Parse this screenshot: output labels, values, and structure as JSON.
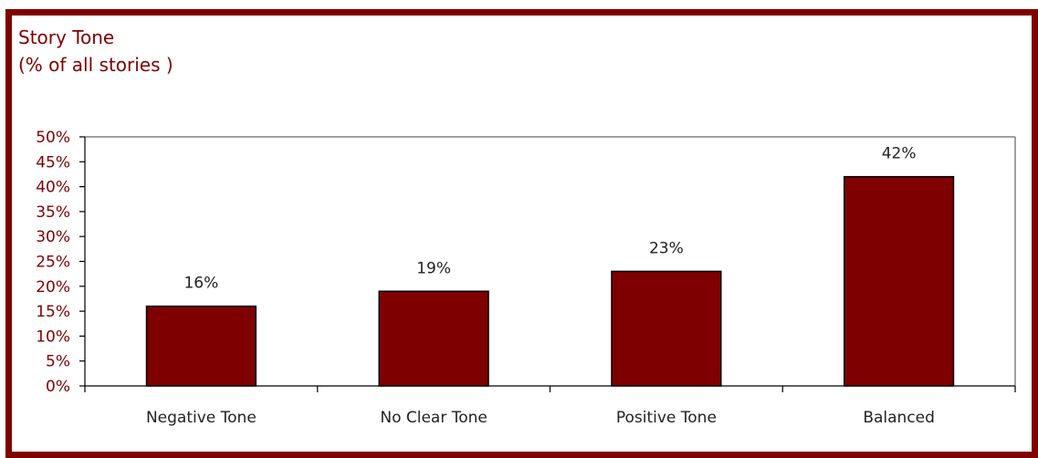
{
  "chart_data": {
    "type": "bar",
    "title": "Story Tone",
    "subtitle": "(% of all stories )",
    "categories": [
      "Negative Tone",
      "No Clear Tone",
      "Positive Tone",
      "Balanced"
    ],
    "values": [
      16,
      19,
      23,
      42
    ],
    "data_labels": [
      "16%",
      "19%",
      "23%",
      "42%"
    ],
    "ylim": [
      0,
      50
    ],
    "yticks": [
      0,
      5,
      10,
      15,
      20,
      25,
      30,
      35,
      40,
      45,
      50
    ],
    "ytick_labels": [
      "0%",
      "5%",
      "10%",
      "15%",
      "20%",
      "25%",
      "30%",
      "35%",
      "40%",
      "45%",
      "50%"
    ],
    "xlabel": "",
    "ylabel": "",
    "grid": false,
    "legend": "none",
    "colors": {
      "bar": "#7f0000",
      "frame": "#7f0000",
      "axis": "#808080",
      "title": "#7f0000"
    }
  }
}
